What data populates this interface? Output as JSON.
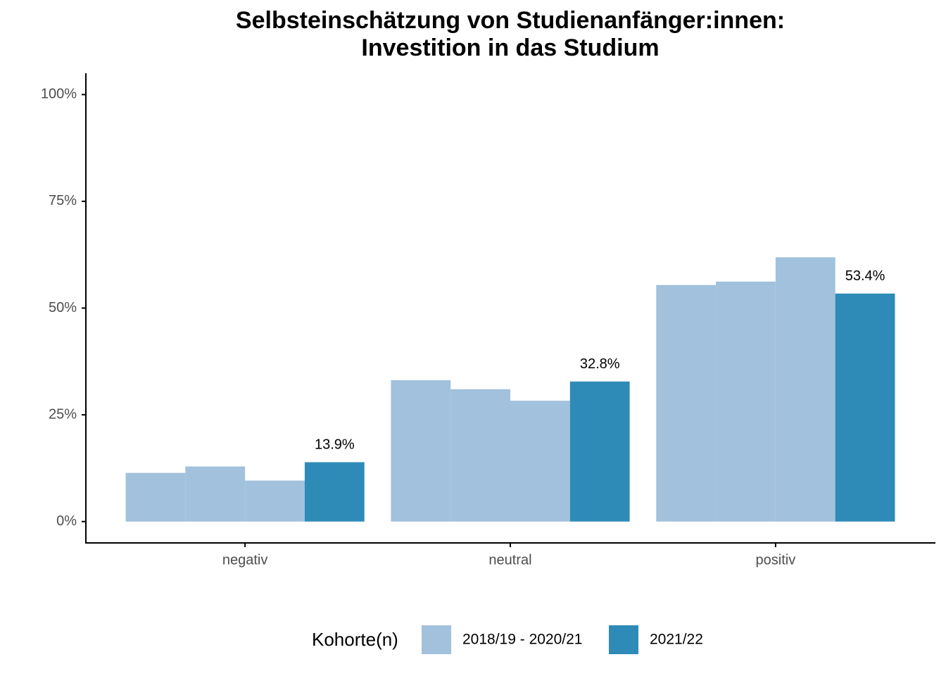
{
  "chart_data": {
    "type": "bar",
    "title": [
      "Selbsteinschätzung von Studienanfänger:innen:",
      "Investition in das Studium"
    ],
    "categories": [
      "negativ",
      "neutral",
      "positiv"
    ],
    "series": [
      {
        "name": "2018/19 - 2020/21",
        "color": "#a1c1dd",
        "values": [
          [
            11.4,
            12.9,
            9.6
          ],
          [
            33.1,
            31.0,
            28.3
          ],
          [
            55.4,
            56.2,
            61.9
          ]
        ]
      },
      {
        "name": "2021/22",
        "color": "#2e8bb7",
        "values": [
          13.9,
          32.8,
          53.4
        ],
        "value_labels": [
          "13.9%",
          "32.8%",
          "53.4%"
        ]
      }
    ],
    "ylim": [
      -5,
      105
    ],
    "yticks": [
      {
        "value": 0,
        "label": "0%"
      },
      {
        "value": 25,
        "label": "25%"
      },
      {
        "value": 50,
        "label": "50%"
      },
      {
        "value": 75,
        "label": "75%"
      },
      {
        "value": 100,
        "label": "100%"
      }
    ],
    "legend_title": "Kohorte(n)",
    "legend_position": "bottom"
  }
}
